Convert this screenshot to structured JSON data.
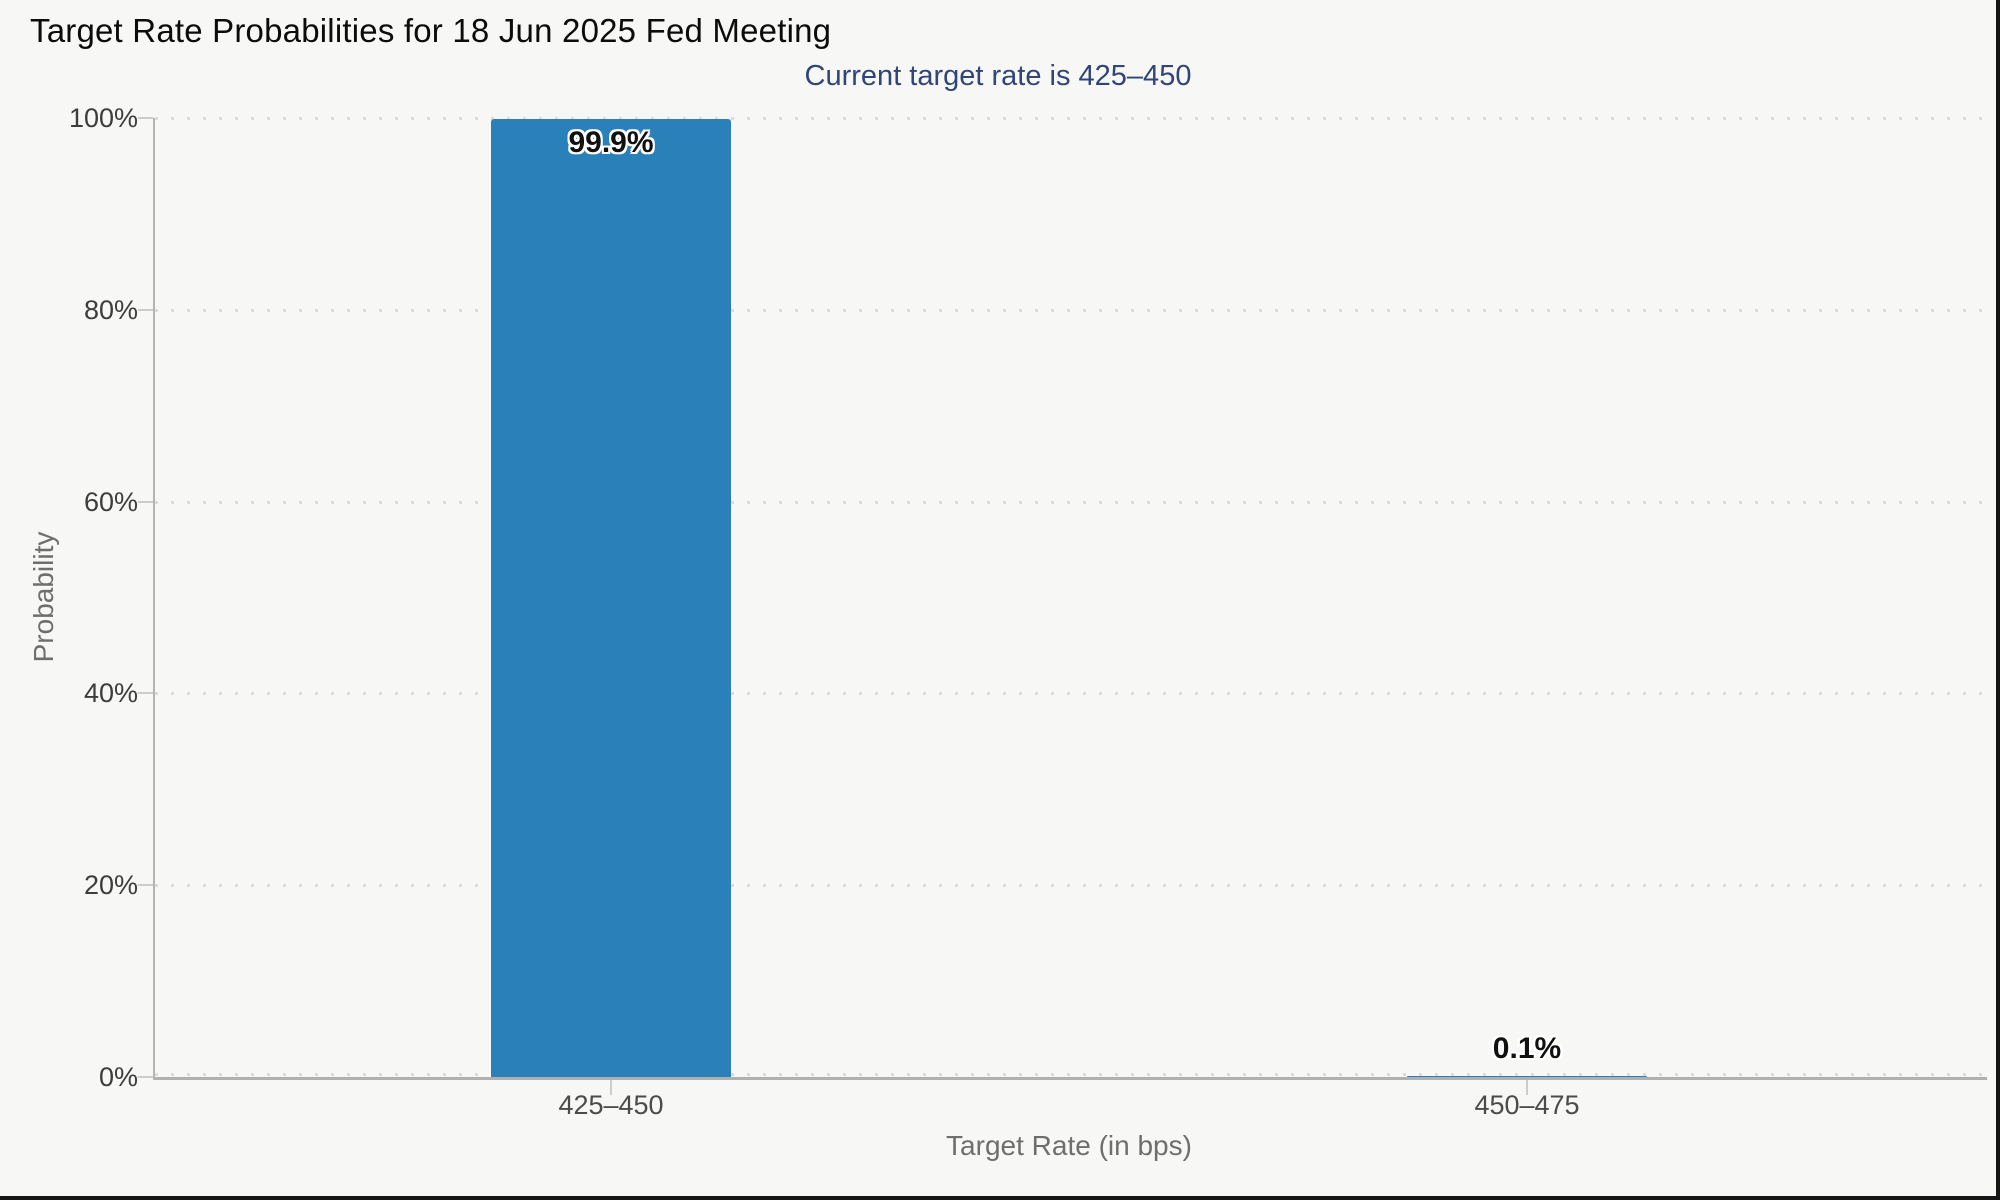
{
  "chart_data": {
    "type": "bar",
    "title": "Target Rate Probabilities for 18 Jun 2025 Fed Meeting",
    "subtitle": "Current target rate is 425–450",
    "categories": [
      "425–450",
      "450–475"
    ],
    "values": [
      99.9,
      0.1
    ],
    "value_labels": [
      "99.9%",
      "0.1%"
    ],
    "xlabel": "Target Rate (in bps)",
    "ylabel": "Probability",
    "ylim": [
      0,
      100
    ],
    "yticks": [
      "0%",
      "20%",
      "40%",
      "60%",
      "80%",
      "100%"
    ],
    "grid": "horizontal-dotted",
    "legend": "none"
  },
  "colors": {
    "bar": "#2a80b9",
    "subtitle": "#2f4677",
    "background": "#f7f7f6",
    "axis_line": "#b0b0b0",
    "grid_dot": "#dcdcdc",
    "tick_label": "#3d3d3d",
    "axis_title": "#6e6e6e",
    "border": "#161616"
  }
}
